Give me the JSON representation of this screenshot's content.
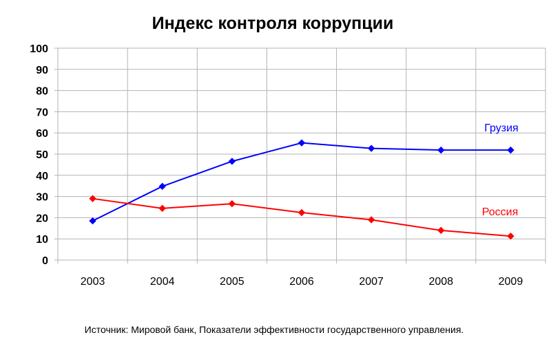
{
  "chart_data": {
    "type": "line",
    "title": "Индекс контроля коррупции",
    "categories": [
      "2003",
      "2004",
      "2005",
      "2006",
      "2007",
      "2008",
      "2009"
    ],
    "series": [
      {
        "name": "Грузия",
        "color": "#0000ff",
        "values": [
          18.5,
          34.8,
          46.6,
          55.3,
          52.7,
          51.9,
          51.9
        ]
      },
      {
        "name": "Россия",
        "color": "#ff0000",
        "values": [
          29.0,
          24.4,
          26.6,
          22.4,
          19.0,
          14.0,
          11.3
        ]
      }
    ],
    "yticks": [
      "0",
      "10",
      "20",
      "30",
      "40",
      "50",
      "60",
      "70",
      "80",
      "90",
      "100"
    ],
    "ylim": [
      0,
      100
    ],
    "grid": true,
    "marker": "diamond"
  },
  "source_note": "Источник: Мировой банк, Показатели эффективности государственного управления."
}
